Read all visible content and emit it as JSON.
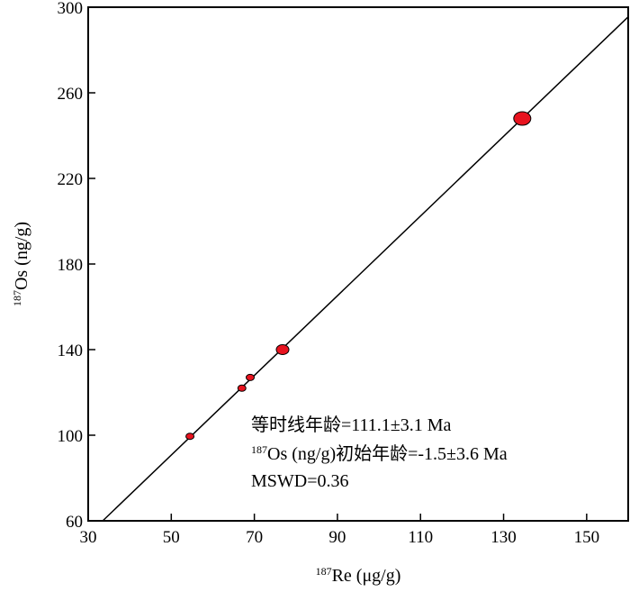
{
  "chart_data": {
    "type": "scatter",
    "title": "",
    "xlabel": {
      "sup": "187",
      "text": "Re (μg/g)"
    },
    "ylabel": {
      "sup": "187",
      "text": "Os (ng/g)"
    },
    "xlim": [
      30,
      160
    ],
    "ylim": [
      60,
      300
    ],
    "xticks": [
      30,
      50,
      70,
      90,
      110,
      130,
      150
    ],
    "yticks": [
      60,
      100,
      140,
      180,
      220,
      260,
      300
    ],
    "points": [
      {
        "x": 54.5,
        "y": 99.5,
        "size": "small"
      },
      {
        "x": 67.0,
        "y": 122.0,
        "size": "small"
      },
      {
        "x": 69.0,
        "y": 127.0,
        "size": "small"
      },
      {
        "x": 76.8,
        "y": 140.0,
        "size": "medium"
      },
      {
        "x": 134.5,
        "y": 248.0,
        "size": "large"
      }
    ],
    "isochron": {
      "x": [
        33.5,
        160.0
      ],
      "y": [
        60.0,
        295.5
      ]
    },
    "marker_color": "#e8131f",
    "annotations": {
      "age": "等时线年龄=111.1±3.1 Ma",
      "initial_sup": "187",
      "initial_text": "Os (ng/g)初始年龄=-1.5±3.6  Ma",
      "mswd": "MSWD=0.36"
    }
  }
}
